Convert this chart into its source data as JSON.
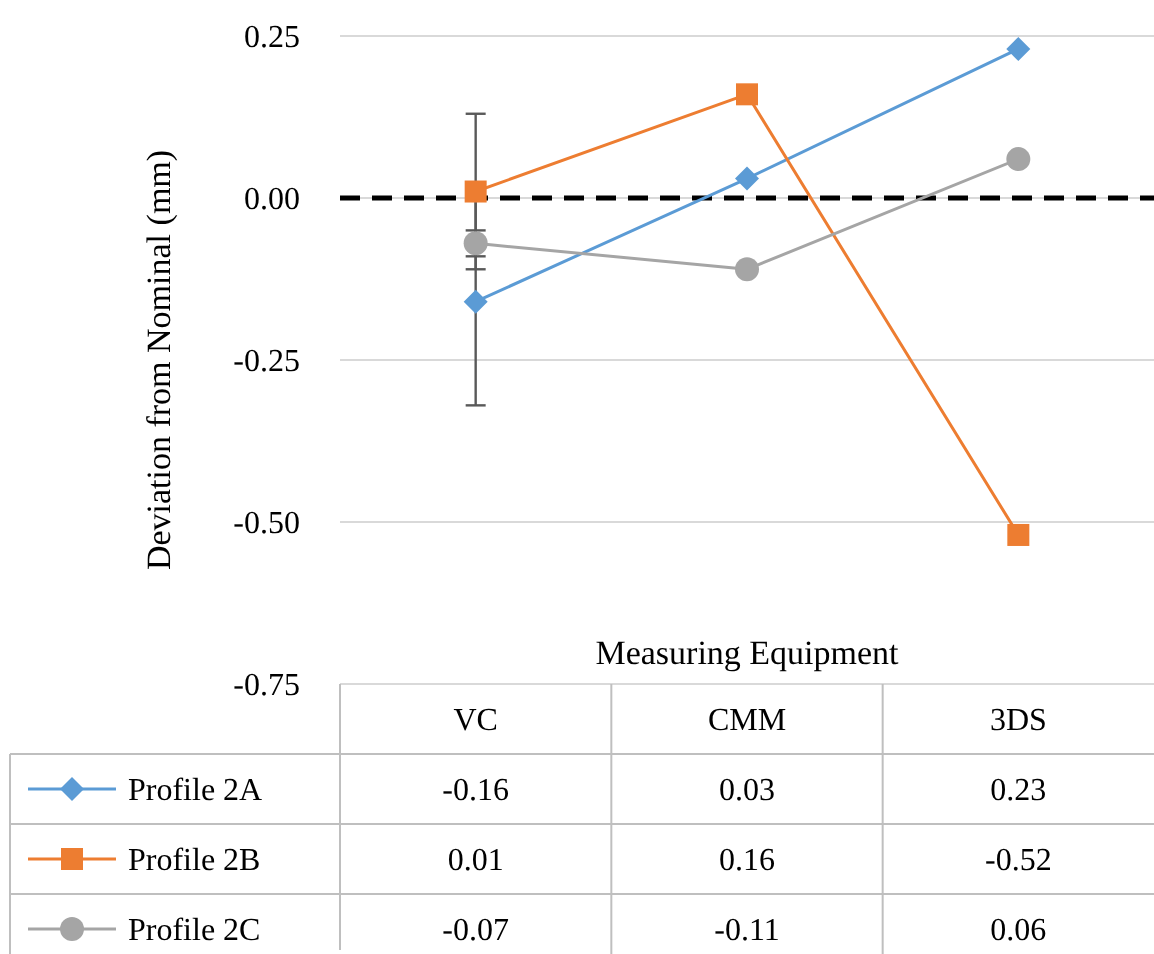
{
  "chart_data": {
    "type": "line",
    "xlabel": "Measuring Equipment",
    "ylabel": "Deviation from Nominal (mm)",
    "categories": [
      "VC",
      "CMM",
      "3DS"
    ],
    "series": [
      {
        "name": "Profile 2A",
        "color": "#5b9bd5",
        "marker": "diamond",
        "values": [
          -0.16,
          0.03,
          0.23
        ],
        "errors": [
          0.16,
          null,
          null
        ]
      },
      {
        "name": "Profile 2B",
        "color": "#ed7d31",
        "marker": "square",
        "values": [
          0.01,
          0.16,
          -0.52
        ],
        "errors": [
          0.12,
          null,
          null
        ]
      },
      {
        "name": "Profile 2C",
        "color": "#a5a5a5",
        "marker": "circle",
        "values": [
          -0.07,
          -0.11,
          0.06
        ],
        "errors": [
          0.02,
          null,
          null
        ]
      }
    ],
    "ylim": [
      -0.75,
      0.25
    ],
    "yticks": [
      {
        "value": -0.75,
        "label": "-0.75"
      },
      {
        "value": -0.5,
        "label": "-0.50"
      },
      {
        "value": -0.25,
        "label": "-0.25"
      },
      {
        "value": 0,
        "label": "0.00"
      },
      {
        "value": 0.25,
        "label": "0.25"
      }
    ],
    "grid": "y",
    "ref_lines": [
      {
        "axis": "y",
        "value": 0,
        "color": "#000000",
        "line_style": "dashed"
      }
    ],
    "legend": "bottom",
    "data_labels": true,
    "line_style": "solid"
  }
}
